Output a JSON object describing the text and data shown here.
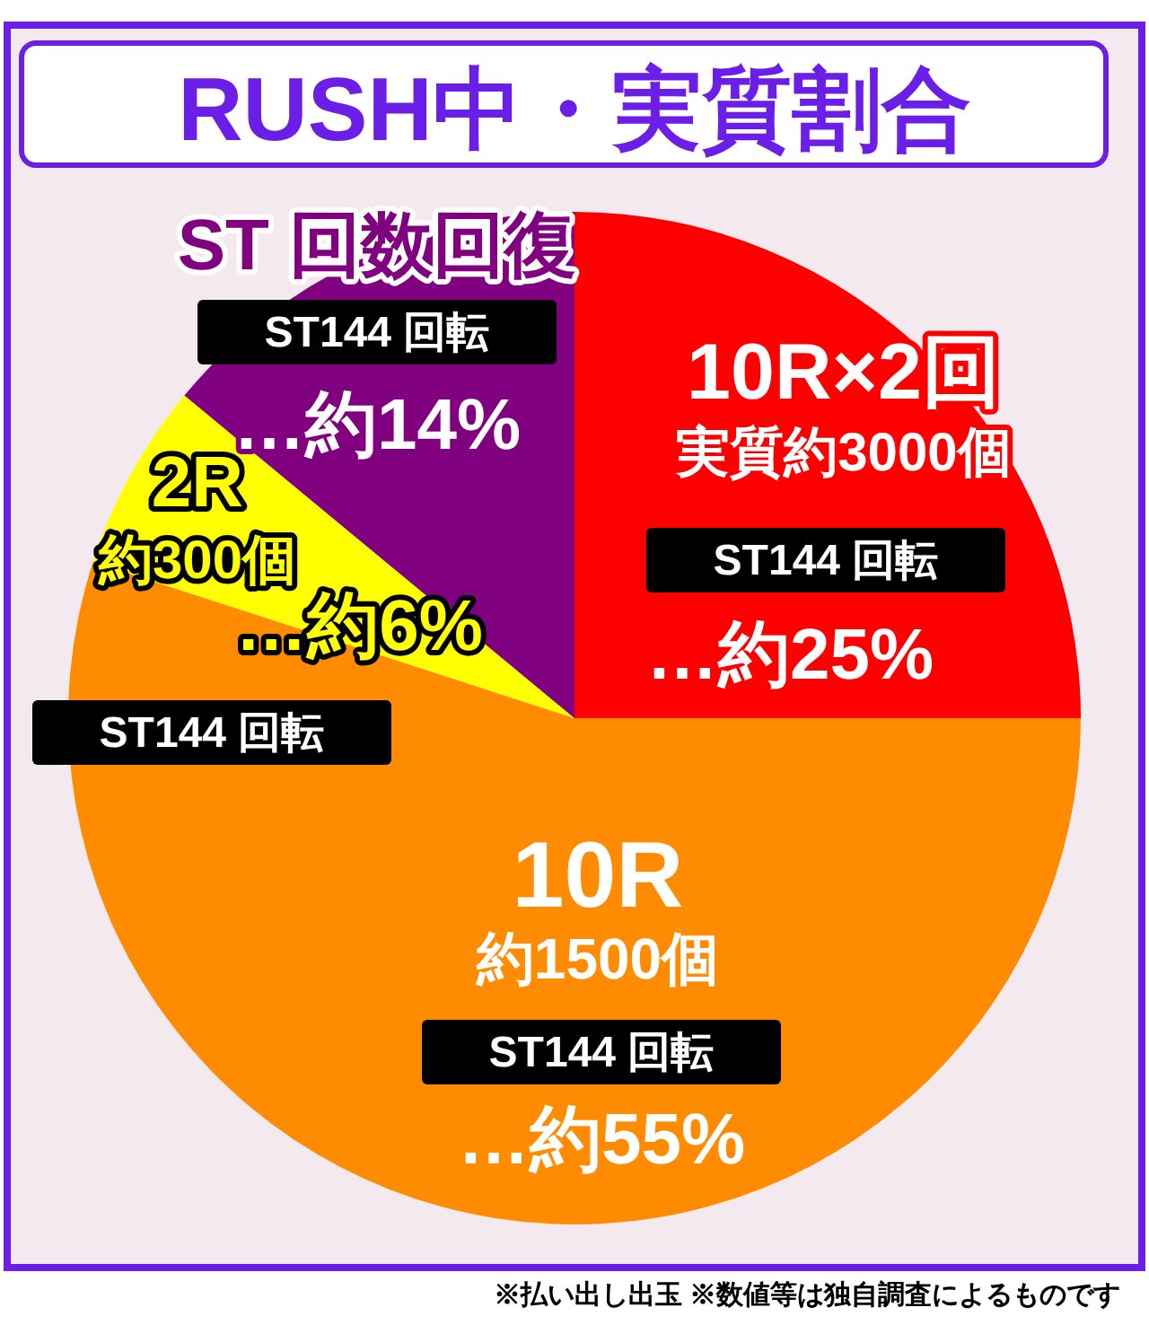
{
  "chart_data": {
    "type": "pie",
    "title": "RUSH中・実質割合",
    "categories": [
      "10R×2回",
      "10R",
      "2R",
      "ST 回数回復"
    ],
    "values": [
      25,
      55,
      6,
      14
    ],
    "colors": [
      "#ff0000",
      "#ff8c00",
      "#ffff00",
      "#800080"
    ],
    "value_labels": [
      "…約25%",
      "…約55%",
      "…約6%",
      "…約14%"
    ],
    "annotations": [
      "実質約3000個",
      "約1500個",
      "約300個",
      "ST144 回転",
      "ST144 回転",
      "ST144 回転",
      "ST144 回転",
      "※払い出し出玉 ※数値等は独自調査によるものです"
    ]
  }
}
